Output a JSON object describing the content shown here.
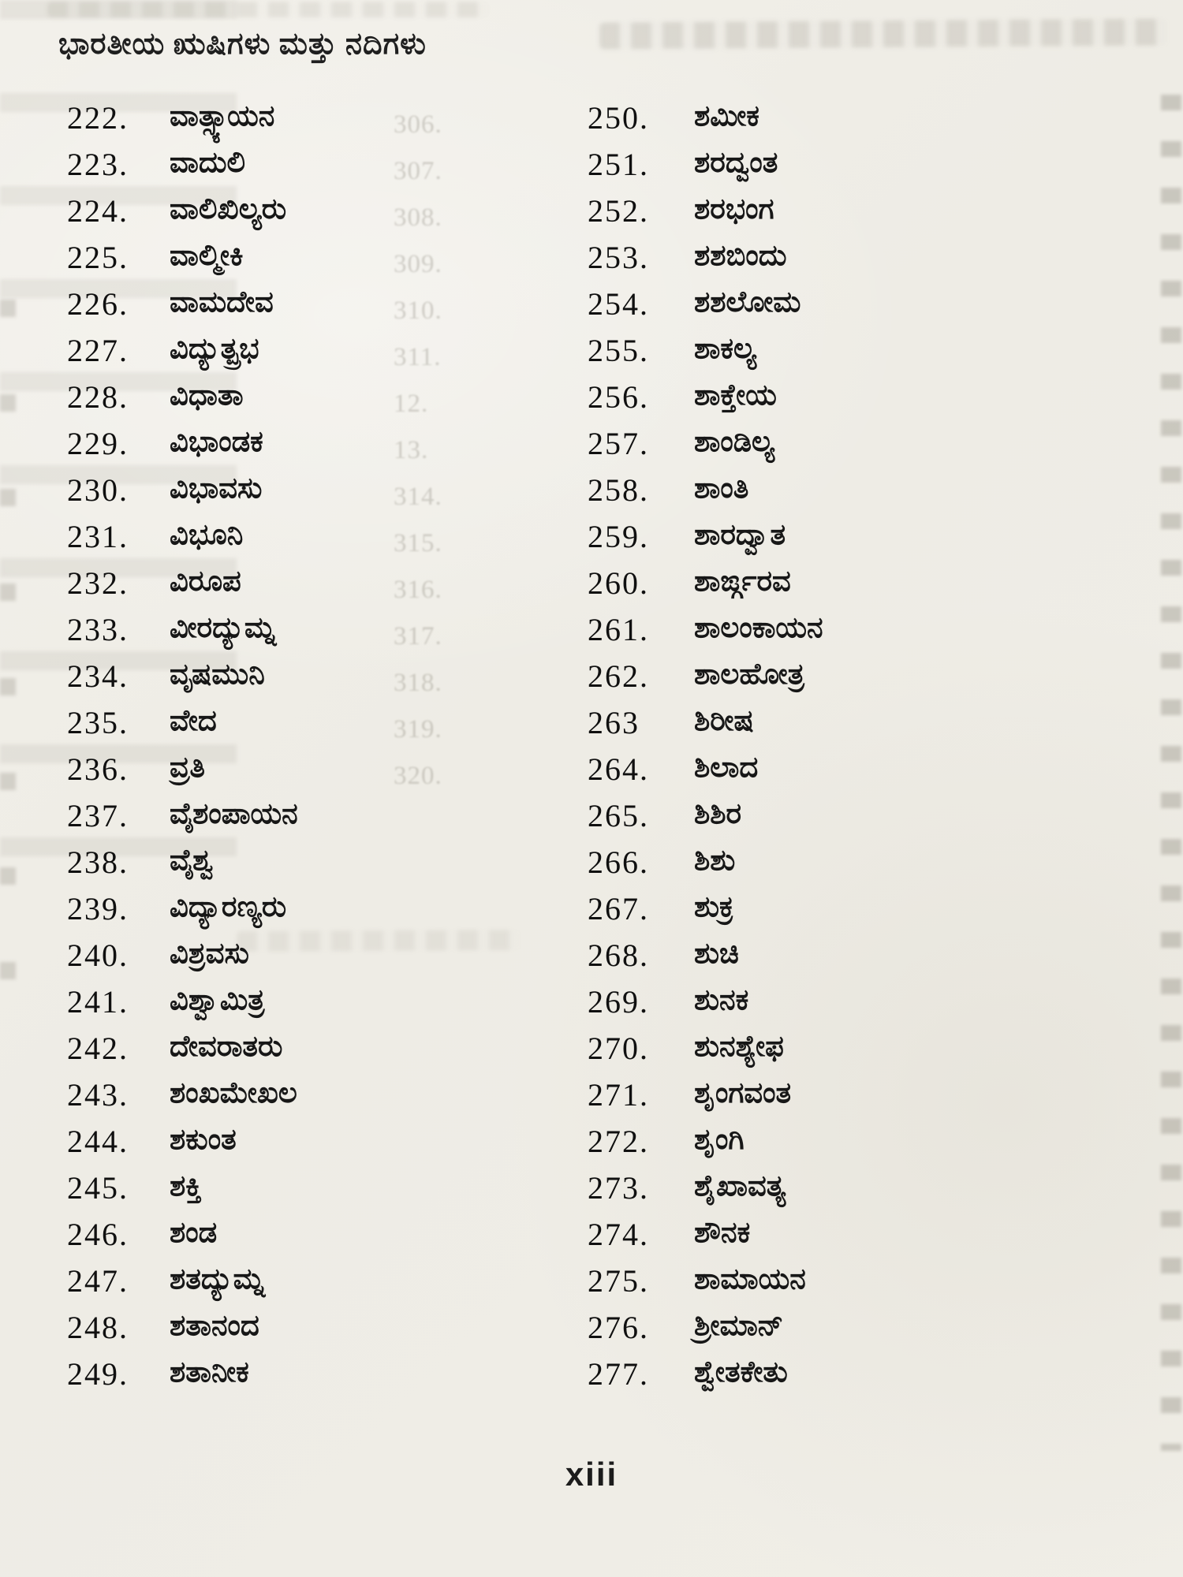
{
  "page": {
    "title": "ಭಾರತೀಯ ಋಷಿಗಳು ಮತ್ತು ನದಿಗಳು",
    "page_number": "xiii"
  },
  "index_list": {
    "left_column": [
      {
        "num": "222.",
        "name": "ವಾತ್ಸ್ಯಾಯನ"
      },
      {
        "num": "223.",
        "name": "ವಾದುಲಿ"
      },
      {
        "num": "224.",
        "name": "ವಾಲಿಖಿಲ್ಯರು"
      },
      {
        "num": "225.",
        "name": "ವಾಲ್ಮೀಕಿ"
      },
      {
        "num": "226.",
        "name": "ವಾಮದೇವ"
      },
      {
        "num": "227.",
        "name": "ವಿದ್ಯುತ್ಪ್ರಭ"
      },
      {
        "num": "228.",
        "name": "ವಿಧಾತಾ"
      },
      {
        "num": "229.",
        "name": "ವಿಭಾಂಡಕ"
      },
      {
        "num": "230.",
        "name": "ವಿಭಾವಸು"
      },
      {
        "num": "231.",
        "name": "ವಿಭೂನಿ"
      },
      {
        "num": "232.",
        "name": "ವಿರೂಪ"
      },
      {
        "num": "233.",
        "name": "ವೀರದ್ಯುಮ್ನ"
      },
      {
        "num": "234.",
        "name": "ವೃಷಮುನಿ"
      },
      {
        "num": "235.",
        "name": "ವೇದ"
      },
      {
        "num": "236.",
        "name": "ವ್ರತಿ"
      },
      {
        "num": "237.",
        "name": "ವೈಶಂಪಾಯನ"
      },
      {
        "num": "238.",
        "name": "ವೈಶ್ವ"
      },
      {
        "num": "239.",
        "name": "ವಿದ್ಯಾರಣ್ಯರು"
      },
      {
        "num": "240.",
        "name": "ವಿಶ್ರವಸು"
      },
      {
        "num": "241.",
        "name": "ವಿಶ್ವಾಮಿತ್ರ"
      },
      {
        "num": "242.",
        "name": "ದೇವರಾತರು"
      },
      {
        "num": "243.",
        "name": "ಶಂಖಮೇಖಲ"
      },
      {
        "num": "244.",
        "name": "ಶಕುಂತ"
      },
      {
        "num": "245.",
        "name": "ಶಕ್ತಿ"
      },
      {
        "num": "246.",
        "name": "ಶಂಡ"
      },
      {
        "num": "247.",
        "name": "ಶತದ್ಯುಮ್ನ"
      },
      {
        "num": "248.",
        "name": "ಶತಾನಂದ"
      },
      {
        "num": "249.",
        "name": "ಶತಾನೀಕ"
      }
    ],
    "right_column": [
      {
        "num": "250.",
        "name": "ಶಮೀಕ"
      },
      {
        "num": "251.",
        "name": "ಶರದ್ವಂತ"
      },
      {
        "num": "252.",
        "name": "ಶರಭಂಗ"
      },
      {
        "num": "253.",
        "name": "ಶಶಬಿಂದು"
      },
      {
        "num": "254.",
        "name": "ಶಶಲೋಮ"
      },
      {
        "num": "255.",
        "name": "ಶಾಕಲ್ಯ"
      },
      {
        "num": "256.",
        "name": "ಶಾಕ್ತೇಯ"
      },
      {
        "num": "257.",
        "name": "ಶಾಂಡಿಲ್ಯ"
      },
      {
        "num": "258.",
        "name": "ಶಾಂತಿ"
      },
      {
        "num": "259.",
        "name": "ಶಾರದ್ವಾತ"
      },
      {
        "num": "260.",
        "name": "ಶಾರ್ಙ್ಗರವ"
      },
      {
        "num": "261.",
        "name": "ಶಾಲಂಕಾಯನ"
      },
      {
        "num": "262.",
        "name": "ಶಾಲಹೋತ್ರ"
      },
      {
        "num": "263",
        "name": "ಶಿರೀಷ"
      },
      {
        "num": "264.",
        "name": "ಶಿಲಾದ"
      },
      {
        "num": "265.",
        "name": "ಶಿಶಿರ"
      },
      {
        "num": "266.",
        "name": "ಶಿಶು"
      },
      {
        "num": "267.",
        "name": "ಶುಕ್ರ"
      },
      {
        "num": "268.",
        "name": "ಶುಚಿ"
      },
      {
        "num": "269.",
        "name": "ಶುನಕ"
      },
      {
        "num": "270.",
        "name": "ಶುನಶ್ಯೇಫ"
      },
      {
        "num": "271.",
        "name": "ಶೃಂಗವಂತ"
      },
      {
        "num": "272.",
        "name": "ಶೃಂಗಿ"
      },
      {
        "num": "273.",
        "name": "ಶೈಖಾವತ್ಯ"
      },
      {
        "num": "274.",
        "name": "ಶೌನಕ"
      },
      {
        "num": "275.",
        "name": "ಶಾಮಾಯನ"
      },
      {
        "num": "276.",
        "name": "ಶ್ರೀಮಾನ್"
      },
      {
        "num": "277.",
        "name": "ಶ್ವೇತಕೇತು"
      }
    ]
  },
  "bleed_through": {
    "ghost_numbers": [
      "306.",
      "307.",
      "308.",
      "309.",
      "310.",
      "311.",
      "12.",
      "13.",
      "314.",
      "315.",
      "316.",
      "317.",
      "318.",
      "319.",
      "320."
    ]
  }
}
